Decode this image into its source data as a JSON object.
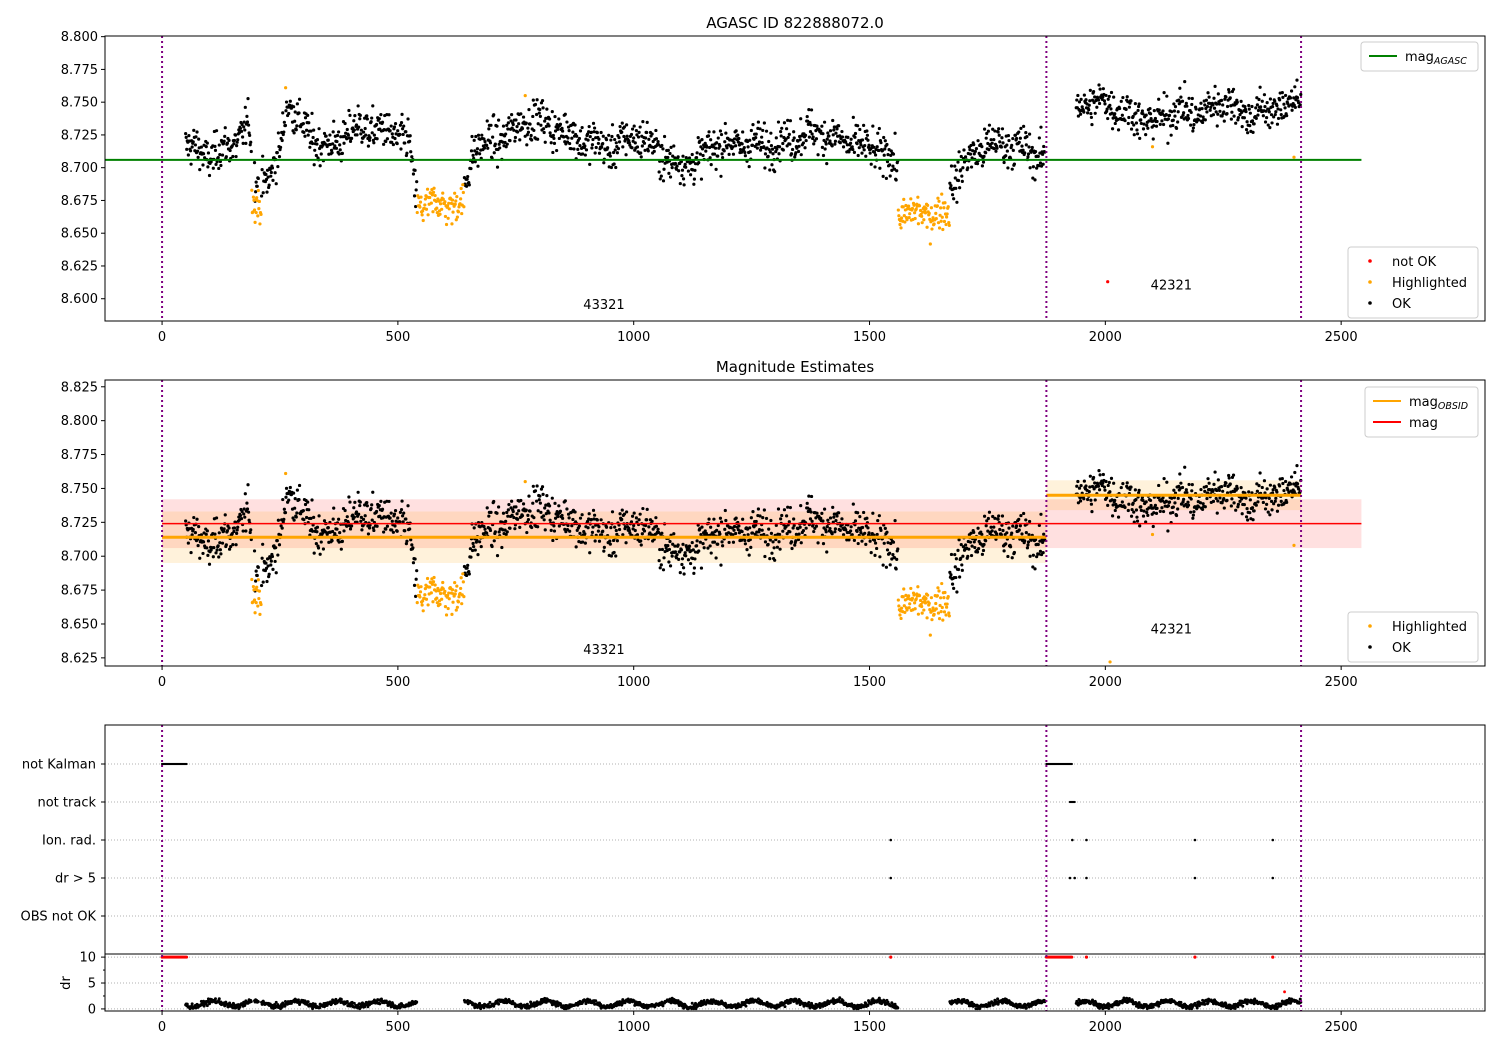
{
  "chart_data": [
    {
      "type": "scatter",
      "title": "AGASC ID 822888072.0",
      "xlim": [
        -121,
        2805
      ],
      "ylim": [
        8.583,
        8.8005
      ],
      "xticks": [
        0,
        500,
        1000,
        1500,
        2000,
        2500
      ],
      "yticks": [
        "8.600",
        "8.625",
        "8.650",
        "8.675",
        "8.700",
        "8.725",
        "8.750",
        "8.775",
        "8.800"
      ],
      "vlines": [
        0,
        1875,
        2415
      ],
      "mag_agasc": 8.706,
      "mag_agasc_xrange": [
        -121,
        2543
      ],
      "obsid_labels": [
        {
          "text": "43321",
          "x": 937,
          "y": 8.592
        },
        {
          "text": "42321",
          "x": 2140,
          "y": 8.607
        }
      ],
      "legend_top": {
        "label": "mag",
        "sub": "AGASC",
        "color": "#008000"
      },
      "legend_bottom": [
        {
          "label": "not OK",
          "color": "#ff0000"
        },
        {
          "label": "Highlighted",
          "color": "#ffa500"
        },
        {
          "label": "OK",
          "color": "#000000"
        }
      ],
      "not_ok_points": [
        [
          2005,
          8.613
        ]
      ],
      "extra_highlighted": [
        [
          2100,
          8.716
        ],
        [
          2400,
          8.708
        ],
        [
          770,
          8.755
        ],
        [
          262,
          8.761
        ]
      ]
    },
    {
      "type": "scatter",
      "title": "Magnitude Estimates",
      "xlim": [
        -121,
        2805
      ],
      "ylim": [
        8.619,
        8.83
      ],
      "xticks": [
        0,
        500,
        1000,
        1500,
        2000,
        2500
      ],
      "yticks": [
        "8.625",
        "8.650",
        "8.675",
        "8.700",
        "8.725",
        "8.750",
        "8.775",
        "8.800",
        "8.825"
      ],
      "vlines": [
        0,
        1875,
        2415
      ],
      "mag": 8.724,
      "mag_band": [
        8.706,
        8.742
      ],
      "mag_xrange": [
        0,
        2543
      ],
      "mag_obsid": [
        {
          "x0": 0,
          "x1": 1875,
          "value": 8.714,
          "band": [
            8.695,
            8.733
          ]
        },
        {
          "x0": 1875,
          "x1": 2415,
          "value": 8.745,
          "band": [
            8.734,
            8.756
          ]
        }
      ],
      "obsid_labels": [
        {
          "text": "43321",
          "x": 937,
          "y": 8.628
        },
        {
          "text": "42321",
          "x": 2140,
          "y": 8.643
        }
      ],
      "legend_top": [
        {
          "label": "mag",
          "sub": "OBSID",
          "color": "#ffa500"
        },
        {
          "label": "mag",
          "sub": "",
          "color": "#ff0000"
        }
      ],
      "legend_bottom": [
        {
          "label": "Highlighted",
          "color": "#ffa500"
        },
        {
          "label": "OK",
          "color": "#000000"
        }
      ],
      "extra_highlighted": [
        [
          2100,
          8.716
        ],
        [
          2400,
          8.708
        ],
        [
          2010,
          8.622
        ],
        [
          770,
          8.755
        ],
        [
          262,
          8.761
        ]
      ]
    },
    {
      "type": "scatter",
      "title": "",
      "xlim": [
        -121,
        2805
      ],
      "xticks": [
        0,
        500,
        1000,
        1500,
        2000,
        2500
      ],
      "categories": [
        "not Kalman",
        "not track",
        "Ion. rad.",
        "dr > 5",
        "OBS not OK"
      ],
      "flags": {
        "not Kalman": {
          "ranges": [
            [
              0,
              52
            ],
            [
              1875,
              1930
            ]
          ],
          "points": []
        },
        "not track": {
          "ranges": [
            [
              1925,
              1935
            ]
          ],
          "points": []
        },
        "Ion. rad.": {
          "ranges": [],
          "points": [
            1545,
            1930,
            1960,
            2190,
            2355
          ]
        },
        "dr > 5": {
          "ranges": [],
          "points": [
            1545,
            1925,
            1935,
            1960,
            2190,
            2355
          ]
        },
        "OBS not OK": {
          "ranges": [],
          "points": []
        }
      },
      "dr_ylabel": "dr",
      "dr_ylim": [
        -0.4,
        10.6
      ],
      "dr_yticks": [
        "0",
        "5",
        "10"
      ],
      "dr_clipped_red": {
        "ranges": [
          [
            0,
            52
          ],
          [
            1875,
            1930
          ]
        ],
        "points": [
          1545,
          1960,
          2190,
          2355
        ],
        "value": 10
      },
      "dr_red_points": [
        [
          2380,
          3.3
        ]
      ],
      "dr_typical": 1.0
    }
  ],
  "series_model": {
    "ok_profile": [
      [
        50,
        8.718
      ],
      [
        100,
        8.708
      ],
      [
        150,
        8.718
      ],
      [
        185,
        8.732
      ],
      [
        195,
        8.69
      ],
      [
        230,
        8.692
      ],
      [
        250,
        8.712
      ],
      [
        265,
        8.752
      ],
      [
        290,
        8.735
      ],
      [
        320,
        8.722
      ],
      [
        350,
        8.715
      ],
      [
        420,
        8.732
      ],
      [
        500,
        8.725
      ],
      [
        525,
        8.718
      ],
      [
        535,
        8.683
      ],
      [
        560,
        8.69
      ],
      [
        600,
        8.68
      ],
      [
        640,
        8.68
      ],
      [
        660,
        8.715
      ],
      [
        720,
        8.722
      ],
      [
        780,
        8.738
      ],
      [
        850,
        8.728
      ],
      [
        900,
        8.72
      ],
      [
        960,
        8.715
      ],
      [
        1000,
        8.725
      ],
      [
        1050,
        8.715
      ],
      [
        1080,
        8.703
      ],
      [
        1140,
        8.705
      ],
      [
        1170,
        8.718
      ],
      [
        1300,
        8.718
      ],
      [
        1380,
        8.728
      ],
      [
        1450,
        8.72
      ],
      [
        1530,
        8.712
      ],
      [
        1560,
        8.7
      ],
      [
        1600,
        8.7
      ],
      [
        1680,
        8.69
      ],
      [
        1700,
        8.703
      ],
      [
        1750,
        8.718
      ],
      [
        1800,
        8.718
      ],
      [
        1870,
        8.708
      ],
      [
        1940,
        8.748
      ],
      [
        2000,
        8.75
      ],
      [
        2060,
        8.74
      ],
      [
        2100,
        8.734
      ],
      [
        2150,
        8.745
      ],
      [
        2200,
        8.74
      ],
      [
        2250,
        8.752
      ],
      [
        2300,
        8.74
      ],
      [
        2360,
        8.745
      ],
      [
        2415,
        8.752
      ]
    ],
    "ok_gaps": [
      [
        1872,
        1938
      ],
      [
        1565,
        1670
      ]
    ],
    "highlighted_segments": [
      [
        190,
        210,
        8.674
      ],
      [
        540,
        640,
        8.672
      ],
      [
        1560,
        1670,
        8.665
      ]
    ],
    "noise_sd": 0.0075
  }
}
